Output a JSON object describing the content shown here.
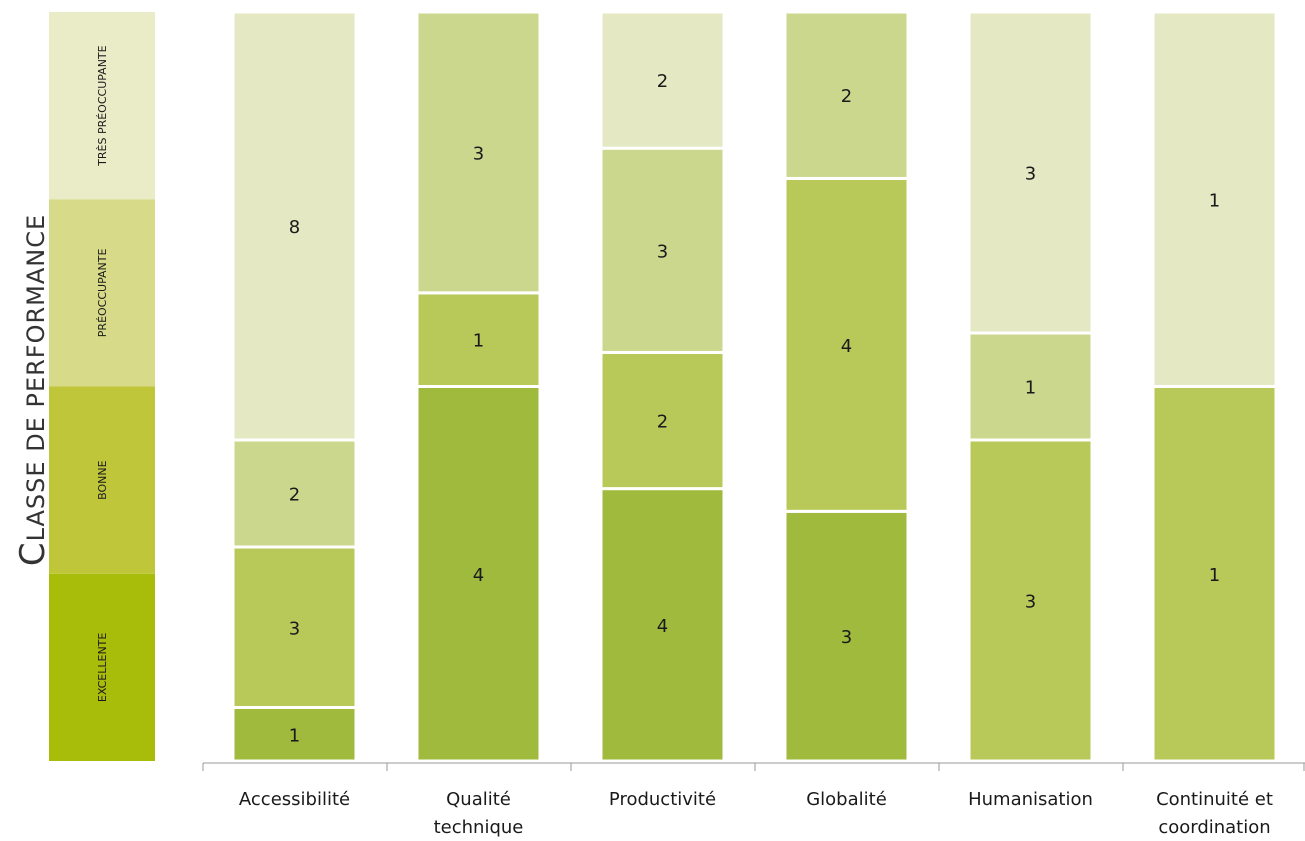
{
  "chart_data": {
    "type": "bar",
    "stacked": true,
    "ylabel_initial": "C",
    "ylabel_rest": "LASSE DE PERFORMANCE",
    "performance_classes": [
      {
        "name": "EXCELLENTE",
        "color": "#a8bc0a"
      },
      {
        "name": "BONNE",
        "color": "#bfc63a"
      },
      {
        "name": "PRÉOCCUPANTE",
        "color": "#d7da88"
      },
      {
        "name": "TRÈS PRÉOCCUPANTE",
        "color": "#eaecc8"
      }
    ],
    "segment_colors": {
      "excellente": "#9fba3d",
      "bonne": "#b8c95a",
      "preoccupante": "#ccd78e",
      "tres_preoccupante": "#e4e8c3"
    },
    "categories": [
      {
        "label_lines": [
          "Accessibilité"
        ],
        "segments": [
          {
            "class": "excellente",
            "value": 1
          },
          {
            "class": "bonne",
            "value": 3
          },
          {
            "class": "preoccupante",
            "value": 2
          },
          {
            "class": "tres_preoccupante",
            "value": 8
          }
        ]
      },
      {
        "label_lines": [
          "Qualité",
          "technique"
        ],
        "segments": [
          {
            "class": "excellente",
            "value": 4
          },
          {
            "class": "bonne",
            "value": 1
          },
          {
            "class": "preoccupante",
            "value": 3
          }
        ]
      },
      {
        "label_lines": [
          "Productivité"
        ],
        "segments": [
          {
            "class": "excellente",
            "value": 4
          },
          {
            "class": "bonne",
            "value": 2
          },
          {
            "class": "preoccupante",
            "value": 3
          },
          {
            "class": "tres_preoccupante",
            "value": 2
          }
        ]
      },
      {
        "label_lines": [
          "Globalité"
        ],
        "segments": [
          {
            "class": "excellente",
            "value": 3
          },
          {
            "class": "bonne",
            "value": 4
          },
          {
            "class": "preoccupante",
            "value": 2
          }
        ]
      },
      {
        "label_lines": [
          "Humanisation"
        ],
        "segments": [
          {
            "class": "bonne",
            "value": 3
          },
          {
            "class": "preoccupante",
            "value": 1
          },
          {
            "class": "tres_preoccupante",
            "value": 3
          }
        ]
      },
      {
        "label_lines": [
          "Continuité et",
          "coordination"
        ],
        "segments": [
          {
            "class": "bonne",
            "value": 1
          },
          {
            "class": "tres_preoccupante",
            "value": 1
          }
        ]
      }
    ]
  }
}
